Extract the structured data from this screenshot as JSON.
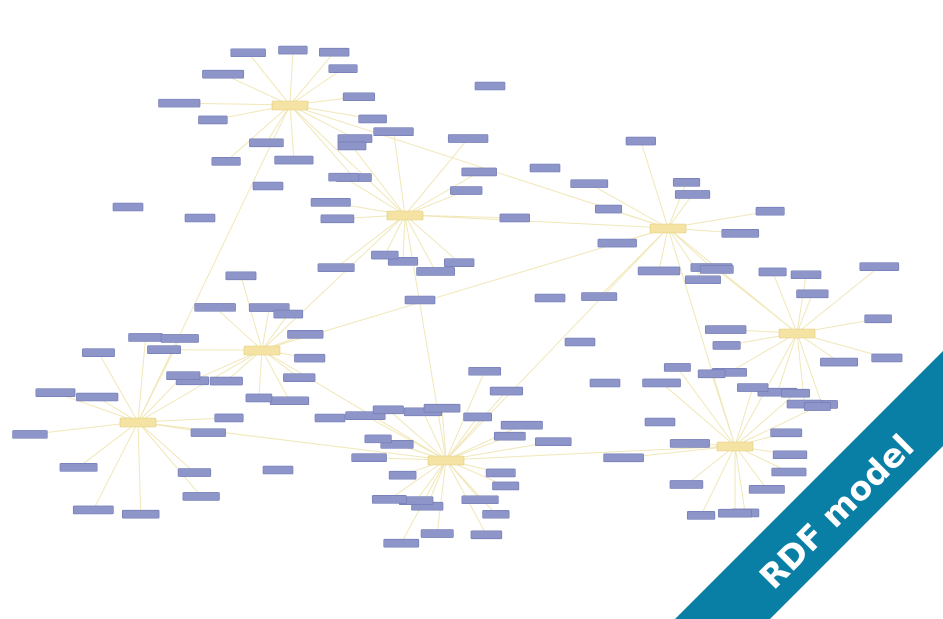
{
  "banner": {
    "label": "RDF model"
  }
}
